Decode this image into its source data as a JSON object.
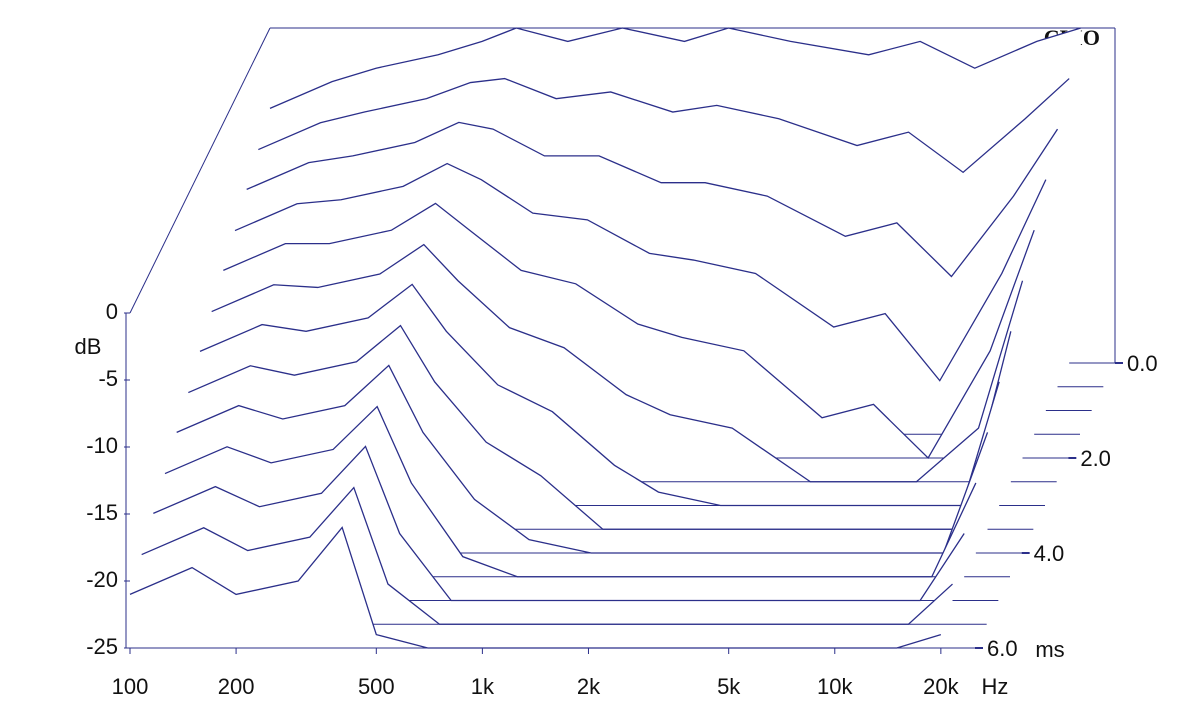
{
  "chart_data": {
    "type": "waterfall",
    "watermark": "CLIO",
    "y_label": "dB",
    "x_unit": "Hz",
    "z_unit": "ms",
    "color": "#2b2f8a",
    "xlog": true,
    "xlim": [
      100,
      25000
    ],
    "ylim": [
      -25,
      0
    ],
    "zlim": [
      0,
      6
    ],
    "xticks": [
      100,
      200,
      500,
      {
        "value": 1000,
        "label": "1k"
      },
      {
        "value": 2000,
        "label": "2k"
      },
      {
        "value": 5000,
        "label": "5k"
      },
      {
        "value": 10000,
        "label": "10k"
      },
      {
        "value": 20000,
        "label": "20k"
      }
    ],
    "yticks": [
      0,
      -5,
      -10,
      -15,
      -20,
      -25
    ],
    "zticks": [
      {
        "value": 0,
        "label": "0.0"
      },
      {
        "value": 2,
        "label": "2.0"
      },
      {
        "value": 4,
        "label": "4.0"
      },
      {
        "value": 6,
        "label": "6.0"
      }
    ],
    "x": [
      100,
      150,
      200,
      300,
      400,
      500,
      700,
      1000,
      1500,
      2000,
      3000,
      5000,
      7000,
      10000,
      15000,
      20000
    ],
    "slices": [
      {
        "time": 0,
        "values": [
          -6,
          -4,
          -3,
          -2,
          -1,
          0,
          -1,
          0,
          -1,
          0,
          -1,
          -2,
          -1,
          -3,
          -1,
          0
        ]
      },
      {
        "time": 0.5,
        "values": [
          -7.3,
          -5.3,
          -4.5,
          -3.5,
          -2.3,
          -2,
          -3.5,
          -3,
          -4.5,
          -4,
          -5,
          -7,
          -6,
          -9,
          -5,
          -2
        ]
      },
      {
        "time": 1,
        "values": [
          -8.5,
          -6.5,
          -6,
          -5,
          -3.5,
          -4,
          -6,
          -6,
          -8,
          -8,
          -9,
          -12,
          -11,
          -15,
          -9,
          -4
        ]
      },
      {
        "time": 1.5,
        "values": [
          -9.8,
          -7.8,
          -7.5,
          -6.5,
          -4.8,
          -6,
          -8.5,
          -9,
          -11.5,
          -12,
          -13,
          -17,
          -16,
          -21,
          -13,
          -6
        ]
      },
      {
        "time": 2,
        "values": [
          -11,
          -9,
          -9,
          -8,
          -6,
          -8,
          -11,
          -12,
          -15,
          -16,
          -17,
          -22,
          -21,
          -25,
          -17,
          -8
        ]
      },
      {
        "time": 2.5,
        "values": [
          -12.3,
          -10.3,
          -10.5,
          -9.5,
          -7.3,
          -10,
          -13.5,
          -15,
          -18.5,
          -20,
          -21,
          -25,
          -25,
          -25,
          -21,
          -10
        ]
      },
      {
        "time": 3,
        "values": [
          -13.5,
          -11.5,
          -12,
          -11,
          -8.5,
          -12,
          -16,
          -18,
          -22,
          -24,
          -25,
          -25,
          -25,
          -25,
          -25,
          -12
        ]
      },
      {
        "time": 3.5,
        "values": [
          -14.8,
          -12.8,
          -13.5,
          -12.5,
          -9.8,
          -14,
          -18.5,
          -21,
          -25,
          -25,
          -25,
          -25,
          -25,
          -25,
          -25,
          -14
        ]
      },
      {
        "time": 4,
        "values": [
          -16,
          -14,
          -15,
          -14,
          -11,
          -16,
          -21,
          -24,
          -25,
          -25,
          -25,
          -25,
          -25,
          -25,
          -25,
          -16
        ]
      },
      {
        "time": 4.5,
        "values": [
          -17.3,
          -15.3,
          -16.5,
          -15.5,
          -12.3,
          -18,
          -23.5,
          -25,
          -25,
          -25,
          -25,
          -25,
          -25,
          -25,
          -25,
          -18
        ]
      },
      {
        "time": 5,
        "values": [
          -18.5,
          -16.5,
          -18,
          -17,
          -13.5,
          -20,
          -25,
          -25,
          -25,
          -25,
          -25,
          -25,
          -25,
          -25,
          -25,
          -20
        ]
      },
      {
        "time": 5.5,
        "values": [
          -19.8,
          -17.8,
          -19.5,
          -18.5,
          -14.8,
          -22,
          -25,
          -25,
          -25,
          -25,
          -25,
          -25,
          -25,
          -25,
          -25,
          -22
        ]
      },
      {
        "time": 6,
        "values": [
          -21,
          -19,
          -21,
          -20,
          -16,
          -24,
          -25,
          -25,
          -25,
          -25,
          -25,
          -25,
          -25,
          -25,
          -25,
          -24
        ]
      }
    ]
  }
}
